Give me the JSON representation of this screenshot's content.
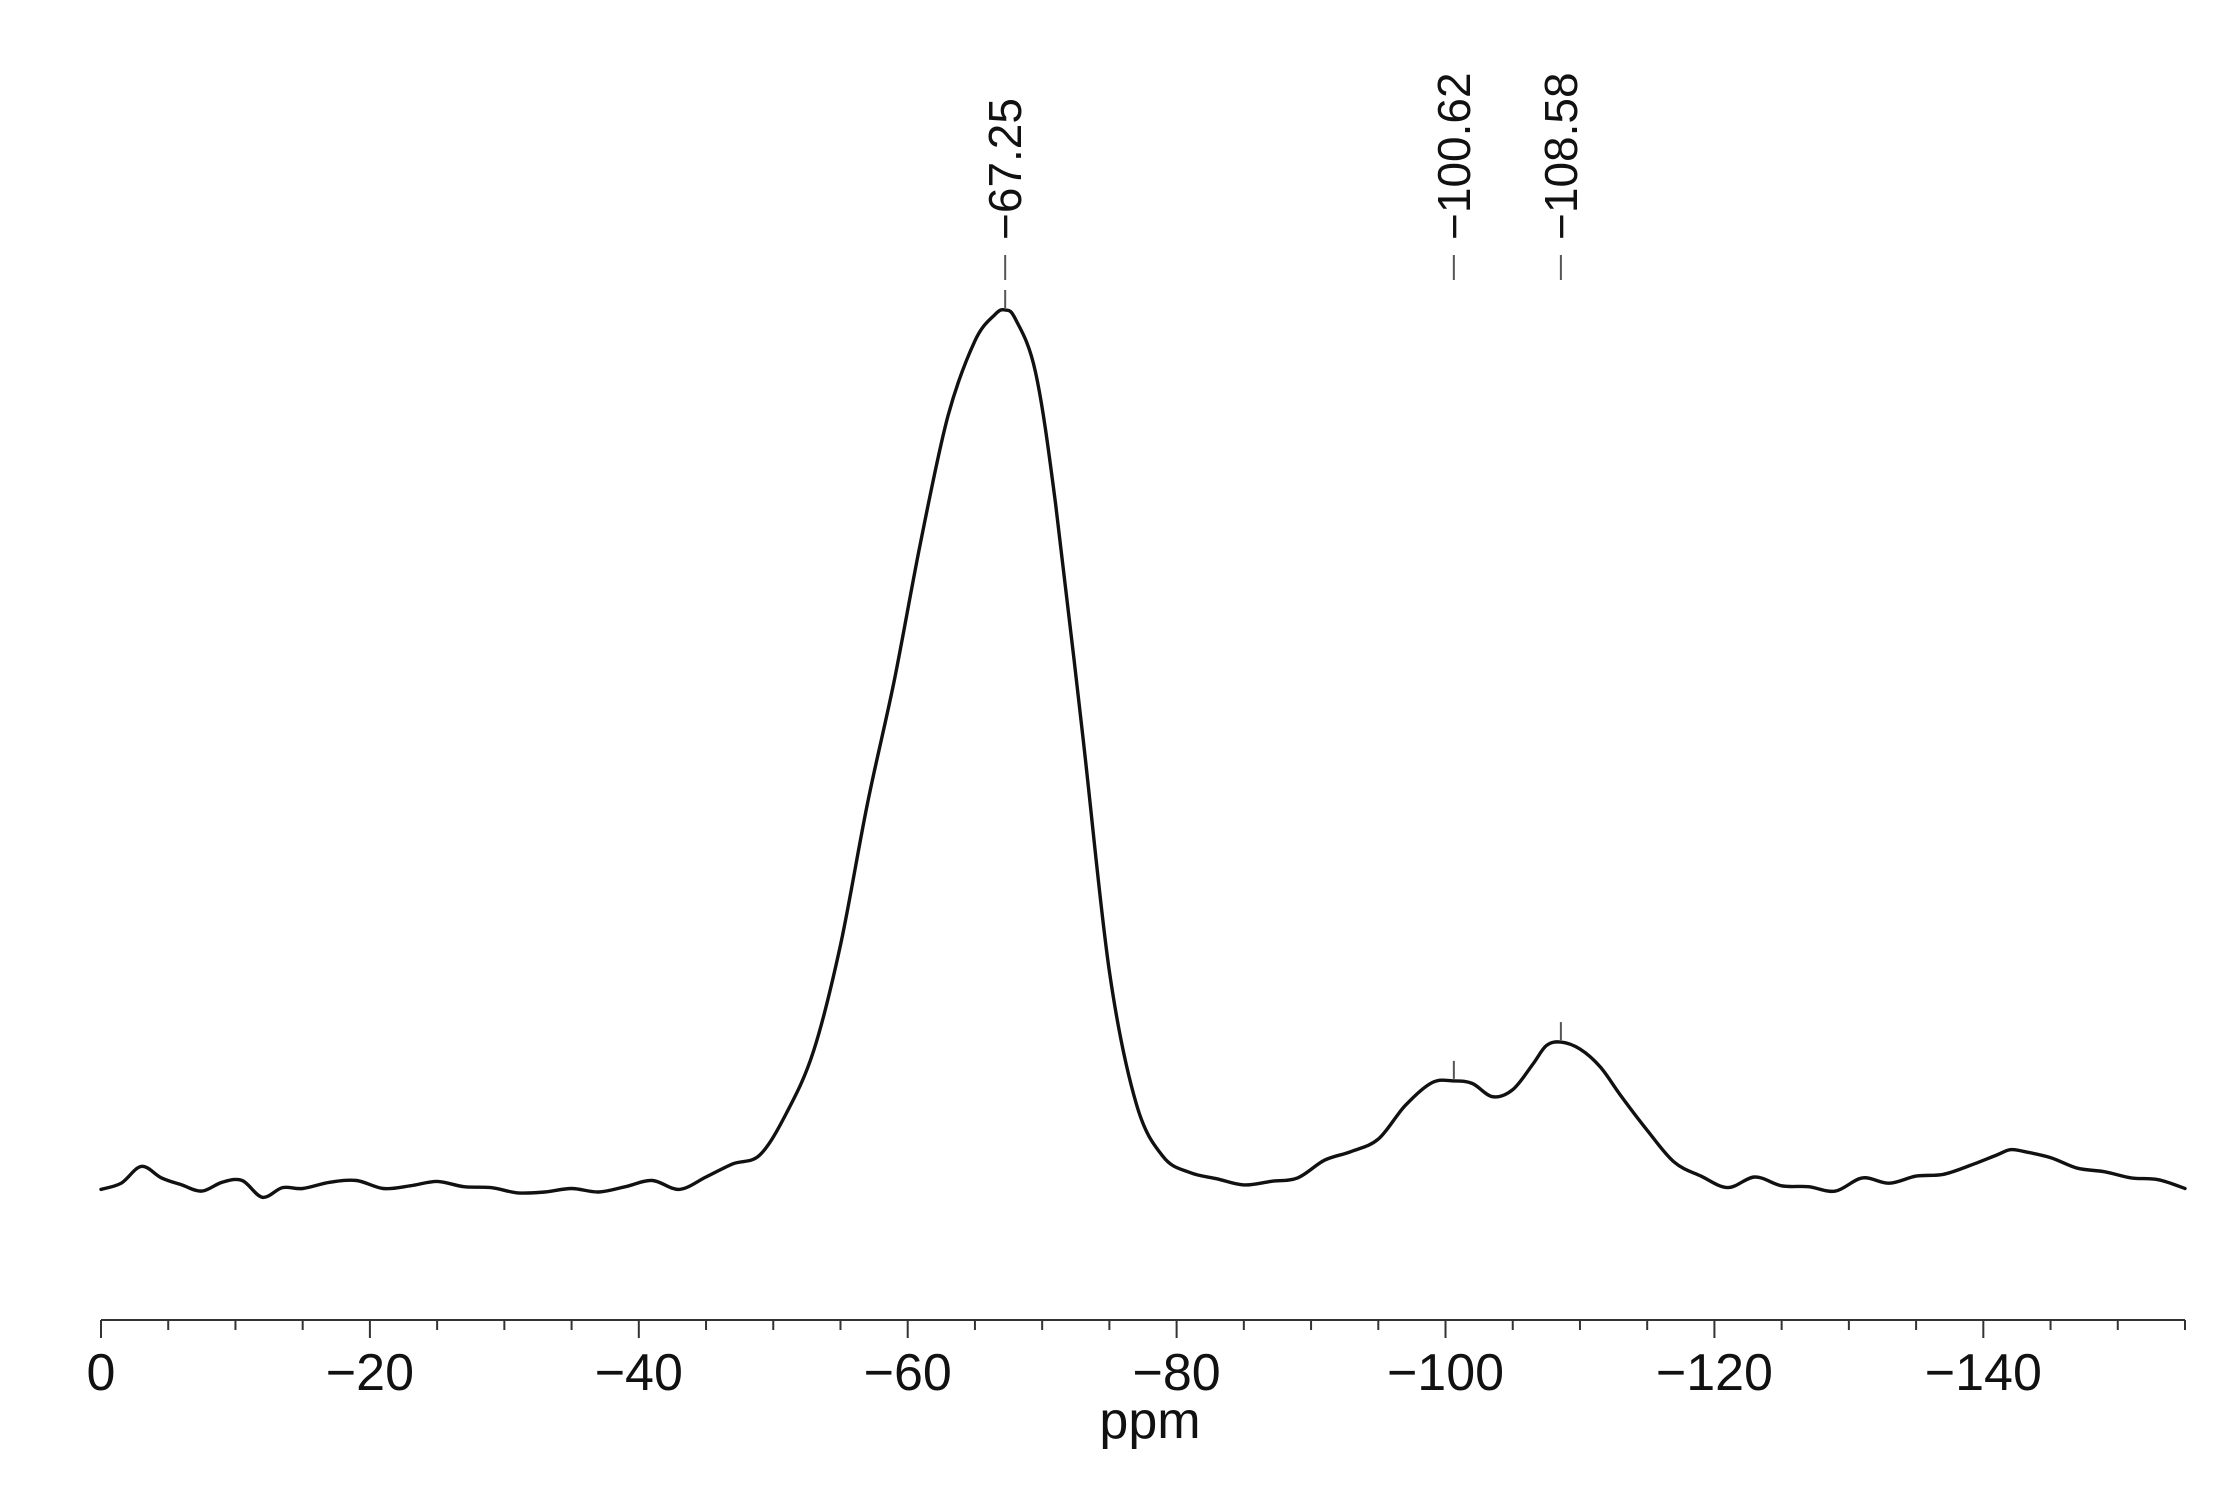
{
  "chart_data": {
    "type": "line",
    "title": "",
    "xlabel": "ppm",
    "ylabel": "",
    "xlim": [
      0,
      -155
    ],
    "x_reversed_display": true,
    "y_axis_shown": false,
    "grid": false,
    "legend": "none",
    "ylim": [
      0,
      100
    ],
    "xticks_major": [
      0,
      -20,
      -40,
      -60,
      -80,
      -100,
      -120,
      -140
    ],
    "xtick_labels": [
      "0",
      "−20",
      "−40",
      "−60",
      "−80",
      "−100",
      "−120",
      "−140"
    ],
    "xticks_minor_step": 5,
    "peak_labels": [
      {
        "x": -67.25,
        "label": "−67.25"
      },
      {
        "x": -100.62,
        "label": "−100.62"
      },
      {
        "x": -108.58,
        "label": "−108.58"
      }
    ],
    "series": [
      {
        "line_color": "#111111",
        "x": [
          0,
          -1.5,
          -3,
          -4.5,
          -6,
          -7.5,
          -9,
          -10.5,
          -12,
          -13.5,
          -15,
          -17,
          -19,
          -21,
          -23,
          -25,
          -27,
          -29,
          -31,
          -33,
          -35,
          -37,
          -39,
          -41,
          -43,
          -45,
          -47,
          -49,
          -51,
          -53,
          -55,
          -57,
          -59,
          -61,
          -63,
          -65,
          -66.5,
          -67.25,
          -68,
          -69.5,
          -71,
          -73,
          -75,
          -77,
          -79,
          -81,
          -83,
          -85,
          -87,
          -89,
          -91,
          -93,
          -95,
          -97,
          -99,
          -100.62,
          -102,
          -103.5,
          -105,
          -106.5,
          -107.5,
          -108.58,
          -110,
          -111.5,
          -113,
          -115,
          -117,
          -119,
          -121,
          -123,
          -125,
          -127,
          -129,
          -131,
          -133,
          -135,
          -137,
          -139,
          -141,
          -142,
          -143,
          -145,
          -147,
          -149,
          -151,
          -153,
          -155
        ],
        "y": [
          0.3,
          1.0,
          2.9,
          1.6,
          0.8,
          0.1,
          1.1,
          1.3,
          -0.6,
          0.5,
          0.4,
          1.1,
          1.3,
          0.4,
          0.7,
          1.2,
          0.6,
          0.5,
          -0.1,
          0.0,
          0.4,
          0.0,
          0.6,
          1.3,
          0.3,
          1.7,
          3.2,
          4.2,
          9.0,
          16.0,
          28.0,
          44.0,
          58.0,
          74.0,
          88.0,
          96.5,
          99.5,
          100.0,
          99.0,
          93.0,
          78.0,
          52.0,
          25.0,
          10.0,
          4.0,
          2.2,
          1.5,
          0.8,
          1.2,
          1.6,
          3.6,
          4.6,
          6.0,
          9.8,
          12.4,
          12.6,
          12.3,
          10.8,
          11.6,
          14.5,
          16.6,
          17.0,
          16.2,
          14.2,
          11.0,
          7.0,
          3.4,
          1.8,
          0.5,
          1.7,
          0.7,
          0.6,
          0.1,
          1.6,
          1.0,
          1.8,
          2.0,
          3.0,
          4.2,
          4.8,
          4.6,
          3.9,
          2.7,
          2.3,
          1.6,
          1.4,
          0.4
        ]
      }
    ]
  }
}
